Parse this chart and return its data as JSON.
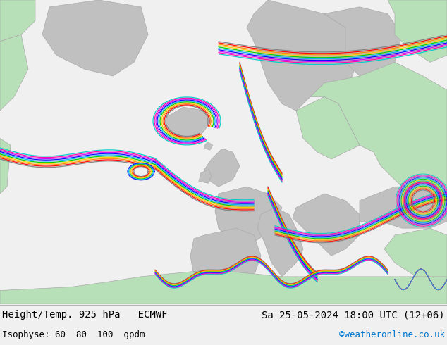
{
  "title_left": "Height/Temp. 925 hPa   ECMWF",
  "title_right": "Sa 25-05-2024 18:00 UTC (12+06)",
  "subtitle_left": "Isophyse: 60  80  100  gpdm",
  "subtitle_right": "©weatheronline.co.uk",
  "subtitle_right_color": "#0077cc",
  "text_color": "#000000",
  "bottom_bar_color": "#f0f0f0",
  "figsize": [
    6.34,
    4.9
  ],
  "dpi": 100,
  "ocean_color": "#e0e0e0",
  "land_green": "#b8e0b8",
  "land_gray": "#aaaaaa",
  "contour_colors": [
    "#808080",
    "#ff0000",
    "#ff8800",
    "#ffcc00",
    "#00cc00",
    "#00aaff",
    "#0000ff",
    "#cc00ff",
    "#ff00aa",
    "#00cccc"
  ],
  "font_size_title": 10,
  "font_size_subtitle": 9
}
